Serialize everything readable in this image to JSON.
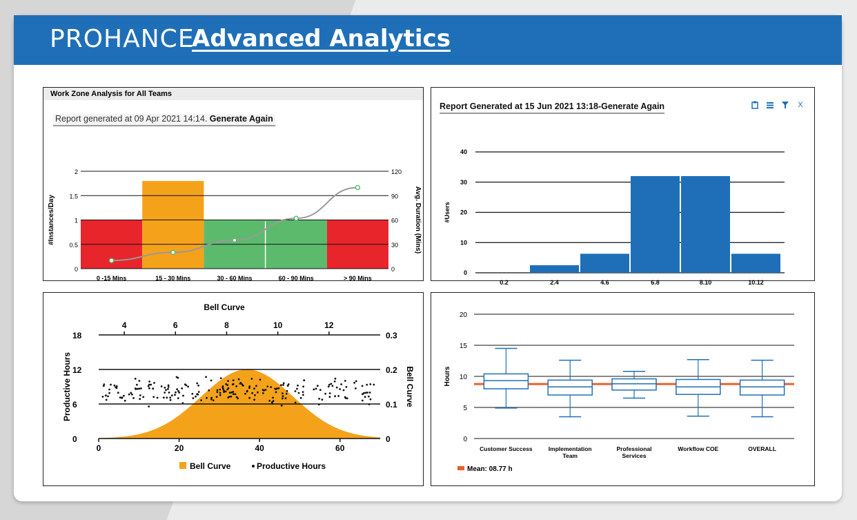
{
  "header": {
    "brand": "PROHANCE",
    "title": "Advanced Analytics"
  },
  "panel1": {
    "heading": "Work Zone Analysis for All Teams",
    "report_text": "Report generated at 09 Apr 2021 14:14. ",
    "generate_label": "Generate Again"
  },
  "panel2": {
    "report_text": "Report Generated at 15 Jun 2021 13:18-Generate Again",
    "tools": [
      "clipboard-icon",
      "menu-icon",
      "filter-icon",
      "close-icon"
    ],
    "close_label": "X"
  },
  "chart_data": [
    {
      "type": "bar",
      "categories": [
        "0 -15 Mins",
        "15 - 30 Mins",
        "30 - 60 Mins",
        "60 - 90 Mins",
        "> 90 Mins"
      ],
      "series": [
        {
          "values": [
            1,
            1.8,
            1,
            1,
            1
          ],
          "colors": [
            "#e8252b",
            "#f5a21b",
            "#5cba6d",
            "#5cba6d",
            "#e8252b"
          ]
        },
        {
          "type": "line",
          "axis": "right",
          "values": [
            10,
            20,
            35,
            62,
            100
          ],
          "color": "#999999",
          "marker_color": "#5cba6d"
        }
      ],
      "ylabel": "#Instances/Day",
      "y2label": "Avg. Duration (Mins)",
      "ylim": [
        0,
        2
      ],
      "yticks": [
        "0",
        "0.5",
        "1",
        "1.5",
        "2"
      ],
      "y2lim": [
        0,
        120
      ],
      "y2ticks": [
        "0",
        "30",
        "60",
        "90",
        "120"
      ]
    },
    {
      "type": "bar",
      "categories": [
        "0.2",
        "2.4",
        "4.6",
        "6.8",
        "8.10",
        "10.12"
      ],
      "values": [
        0,
        2.5,
        6.3,
        32,
        32,
        6.3
      ],
      "ylabel": "#Users",
      "ylim": [
        0,
        40
      ],
      "yticks": [
        "0",
        "10",
        "20",
        "30",
        "40"
      ],
      "color": "#1f6fb8"
    },
    {
      "type": "scatter",
      "title": "Bell Curve",
      "xlabel": "",
      "ylabel": "Productive Hours",
      "y2label": "Bell Curve",
      "xlim": [
        0,
        70
      ],
      "xticks": [
        "0",
        "20",
        "40",
        "60"
      ],
      "x2lim": [
        3,
        14
      ],
      "x2ticks": [
        "4",
        "6",
        "8",
        "10",
        "12"
      ],
      "ylim": [
        0,
        18
      ],
      "yticks": [
        "0",
        "6",
        "12",
        "18"
      ],
      "y2lim": [
        0,
        0.3
      ],
      "y2ticks": [
        "0",
        "0.1",
        "0.2",
        "0.3"
      ],
      "bell_curve": {
        "mean": 8.8,
        "sd": 1.8,
        "peak": 0.2,
        "color": "#f5a21b"
      },
      "series": [
        {
          "name": "Bell Curve",
          "color": "#f5a21b"
        },
        {
          "name": "Productive Hours",
          "color": "#111111",
          "count": 220,
          "y_center": 8.4,
          "y_spread": 1.3
        }
      ]
    },
    {
      "type": "box",
      "categories": [
        "Customer Success",
        "Implementation Team",
        "Professional Services",
        "Workflow COE",
        "OVERALL"
      ],
      "boxes": [
        {
          "min": 4.9,
          "q1": 8.0,
          "median": 9.3,
          "q3": 10.4,
          "max": 14.5
        },
        {
          "min": 3.5,
          "q1": 7.0,
          "median": 8.3,
          "q3": 9.4,
          "max": 12.6
        },
        {
          "min": 6.5,
          "q1": 7.8,
          "median": 8.8,
          "q3": 9.6,
          "max": 10.8
        },
        {
          "min": 3.6,
          "q1": 7.1,
          "median": 8.3,
          "q3": 9.5,
          "max": 12.7
        },
        {
          "min": 3.5,
          "q1": 7.0,
          "median": 8.3,
          "q3": 9.4,
          "max": 12.6
        }
      ],
      "mean": 8.77,
      "mean_label": "Mean: 08.77 h",
      "ylabel": "Hours",
      "ylim": [
        0,
        20
      ],
      "yticks": [
        "0",
        "5",
        "10",
        "15",
        "20"
      ],
      "color": "#1f6fb8",
      "mean_color": "#e8602c"
    }
  ]
}
